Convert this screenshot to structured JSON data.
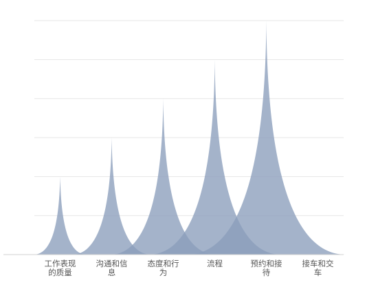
{
  "chart_data": {
    "type": "area",
    "title": "",
    "xlabel": "",
    "ylabel": "",
    "categories": [
      [
        "工作表现",
        "的质量"
      ],
      [
        "沟通和信",
        "息"
      ],
      [
        "态度和行",
        "为"
      ],
      [
        "流程"
      ],
      [
        "预约和接",
        "待"
      ],
      [
        "接车和交",
        "车"
      ]
    ],
    "values": [
      2,
      3,
      4,
      5,
      6,
      0
    ],
    "ylim": [
      0,
      6
    ],
    "grid": true,
    "y_tick_labels_visible": false,
    "legend": "none",
    "colors": {
      "fill": "#8b9dbb",
      "grid": "#e6e6e6",
      "text": "#555555"
    }
  }
}
